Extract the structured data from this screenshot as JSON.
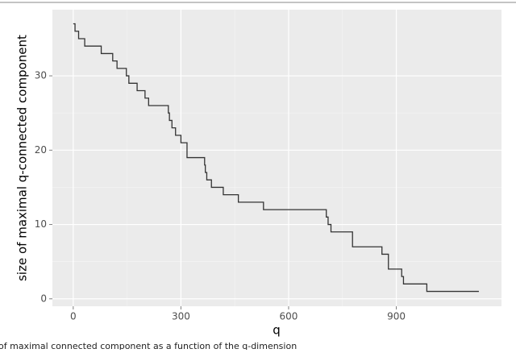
{
  "chart_data": {
    "type": "step",
    "x_label": "q",
    "y_label": "size of maximal q-connected component",
    "caption": "of maximal connected component as a function of the q-dimension",
    "x": [
      0,
      5,
      15,
      32,
      78,
      110,
      122,
      148,
      155,
      178,
      200,
      210,
      265,
      268,
      275,
      285,
      300,
      317,
      366,
      368,
      372,
      385,
      418,
      460,
      530,
      705,
      710,
      718,
      778,
      860,
      878,
      915,
      920,
      985,
      1130
    ],
    "values": [
      37,
      36,
      35,
      34,
      33,
      32,
      31,
      30,
      29,
      28,
      27,
      26,
      25,
      24,
      23,
      22,
      21,
      19,
      18,
      17,
      16,
      15,
      14,
      13,
      12,
      11,
      10,
      9,
      7,
      6,
      4,
      3,
      2,
      1,
      1
    ],
    "color": "#333333",
    "xlim": [
      -58,
      1193
    ],
    "ylim": [
      -1,
      38.9
    ],
    "xticks": [
      0,
      300,
      600,
      900
    ],
    "yticks": [
      0,
      10,
      20,
      30
    ],
    "grid": true
  }
}
